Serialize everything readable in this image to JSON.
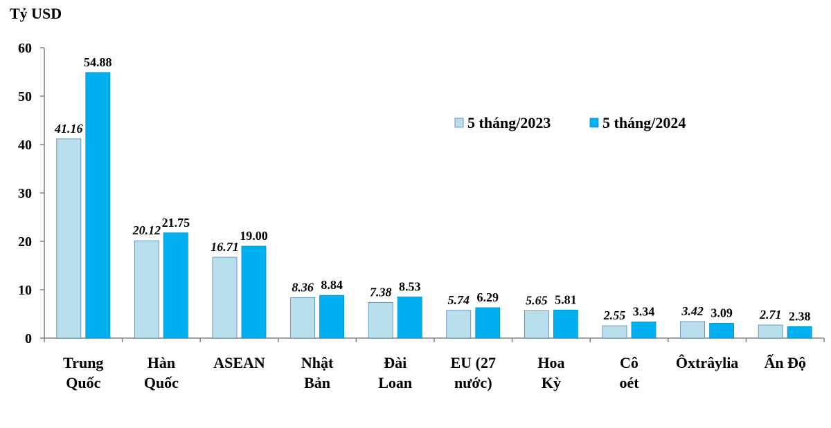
{
  "chart_data": {
    "type": "bar",
    "ylabel": "Tỷ USD",
    "ylim": [
      0,
      60
    ],
    "yticks": [
      0,
      10,
      20,
      30,
      40,
      50,
      60
    ],
    "grid": false,
    "legend_position": "top-right",
    "categories": [
      [
        "Trung",
        "Quốc"
      ],
      [
        "Hàn",
        "Quốc"
      ],
      [
        "ASEAN"
      ],
      [
        "Nhật",
        "Bản"
      ],
      [
        "Đài",
        "Loan"
      ],
      [
        "EU (27",
        "nước)"
      ],
      [
        "Hoa",
        "Kỳ"
      ],
      [
        "Cô",
        "oét"
      ],
      [
        "Ôxtrâylia"
      ],
      [
        "Ấn Độ"
      ]
    ],
    "series": [
      {
        "name": "5 tháng/2023",
        "color": "#b9dfec",
        "values": [
          41.16,
          20.12,
          16.71,
          8.36,
          7.38,
          5.74,
          5.65,
          2.55,
          3.42,
          2.71
        ],
        "labels": [
          "41.16",
          "20.12",
          "16.71",
          "8.36",
          "7.38",
          "5.74",
          "5.65",
          "2.55",
          "3.42",
          "2.71"
        ]
      },
      {
        "name": "5 tháng/2024",
        "color": "#00b0f0",
        "values": [
          54.88,
          21.75,
          19.0,
          8.84,
          8.53,
          6.29,
          5.81,
          3.34,
          3.09,
          2.38
        ],
        "labels": [
          "54.88",
          "21.75",
          "19.00",
          "8.84",
          "8.53",
          "6.29",
          "5.81",
          "3.34",
          "3.09",
          "2.38"
        ]
      }
    ]
  }
}
